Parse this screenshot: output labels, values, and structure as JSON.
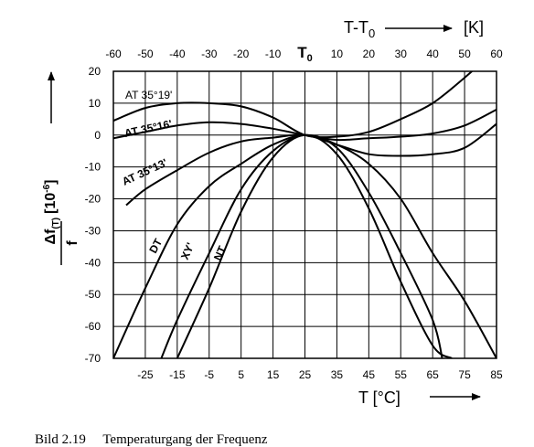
{
  "chart_data": {
    "type": "line",
    "top_axis_title": "T-T",
    "top_axis_title_sub": "0",
    "top_axis_unit": "[K]",
    "bottom_axis_title": "T [°C]",
    "ylabel_numerator": "Δf",
    "ylabel_sub": "(T)",
    "ylabel_unit": "[10",
    "ylabel_exp": "-6",
    "ylabel_close": "]",
    "ylabel_denominator": "f",
    "top_ticks": [
      "-60",
      "-50",
      "-40",
      "-30",
      "-20",
      "-10",
      "T",
      "10",
      "20",
      "30",
      "40",
      "50",
      "60"
    ],
    "top_tick_T0_sub": "0",
    "bottom_ticks": [
      "-25",
      "-15",
      "-5",
      "5",
      "15",
      "25",
      "35",
      "45",
      "55",
      "65",
      "75",
      "85"
    ],
    "y_ticks": [
      "20",
      "10",
      "0",
      "-10",
      "-20",
      "-30",
      "-40",
      "-50",
      "-60",
      "-70"
    ],
    "xlim": [
      -35,
      85
    ],
    "ylim": [
      -70,
      20
    ],
    "grid": true,
    "series": [
      {
        "name": "AT 35°19'",
        "x": [
          -35,
          -25,
          -15,
          -5,
          5,
          15,
          25,
          35,
          45,
          55,
          65,
          75,
          85
        ],
        "y": [
          4.5,
          8.5,
          10,
          10,
          9,
          5.5,
          0,
          -0.5,
          1,
          5,
          10,
          18,
          27
        ]
      },
      {
        "name": "AT 35°16'",
        "x": [
          -35,
          -25,
          -15,
          -5,
          5,
          15,
          25,
          35,
          45,
          55,
          65,
          75,
          85
        ],
        "y": [
          -1,
          1,
          3,
          4,
          3.5,
          2,
          0,
          -1.5,
          -1,
          -0.5,
          0.5,
          3,
          8
        ]
      },
      {
        "name": "AT 35°13'",
        "x": [
          -31,
          -25,
          -15,
          -5,
          5,
          15,
          25,
          35,
          45,
          55,
          65,
          75,
          85
        ],
        "y": [
          -22,
          -17,
          -11,
          -5.5,
          -2,
          -0.8,
          0,
          -3,
          -6,
          -6.5,
          -6,
          -4,
          3.5
        ]
      },
      {
        "name": "DT",
        "x": [
          -35,
          -25,
          -15,
          -5,
          5,
          15,
          25,
          35,
          45,
          55,
          65,
          75,
          85
        ],
        "y": [
          -70,
          -48,
          -28,
          -16,
          -9,
          -3,
          0,
          -3,
          -9,
          -20,
          -37,
          -52,
          -70
        ]
      },
      {
        "name": "XY'",
        "x": [
          -20,
          -15,
          -5,
          5,
          15,
          25,
          35,
          45,
          55,
          65,
          68
        ],
        "y": [
          -70,
          -58,
          -37,
          -17,
          -5,
          0,
          -4,
          -18,
          -37,
          -58,
          -70
        ]
      },
      {
        "name": "NT",
        "x": [
          -15,
          -5,
          5,
          15,
          25,
          35,
          45,
          55,
          65,
          71
        ],
        "y": [
          -70,
          -48,
          -24,
          -7,
          0,
          -6,
          -23,
          -46,
          -66,
          -70
        ]
      }
    ],
    "curve_labels": [
      "AT 35°19'",
      "AT 35°16'",
      "AT 35°13'",
      "DT",
      "XY'",
      "NT"
    ]
  },
  "caption": "Bild 2.19     Temperaturgang der Frequenz"
}
